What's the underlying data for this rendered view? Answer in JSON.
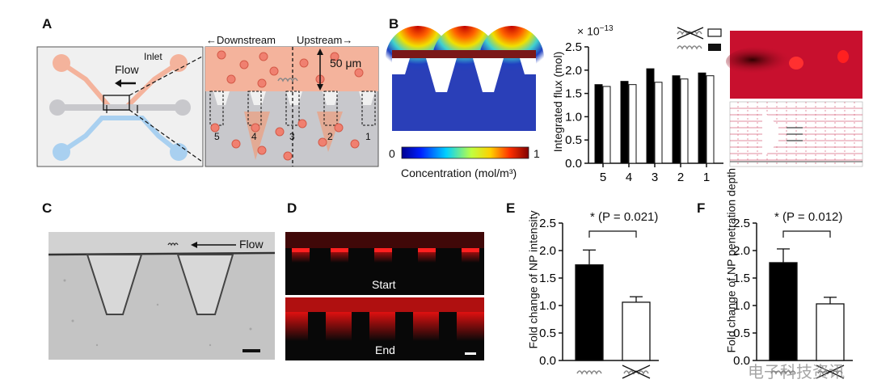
{
  "panels": {
    "a": "A",
    "b": "B",
    "c": "C",
    "d": "D",
    "e": "E",
    "f": "F"
  },
  "panel_a": {
    "inlet": "Inlet",
    "flow": "Flow",
    "downstream": "←Downstream",
    "upstream": "Upstream→",
    "scale": "50 μm",
    "boxes": [
      "5",
      "4",
      "3",
      "2",
      "1"
    ]
  },
  "panel_b": {
    "colorbar_min": "0",
    "colorbar_max": "1",
    "colorbar_label": "Concentration (mol/m³)",
    "exponent": "× 10",
    "exponent_power": "−13"
  },
  "panel_c": {
    "flow": "Flow"
  },
  "panel_d": {
    "start": "Start",
    "end": "End"
  },
  "panel_e": {
    "annotation_star": "*",
    "annotation_text": "(P = 0.021)"
  },
  "panel_f": {
    "annotation_star": "*",
    "annotation_text": "(P = 0.012)"
  },
  "watermark": "电子科技资讯",
  "colors": {
    "black_bar": "#000000",
    "white_bar": "#ffffff",
    "pink": "#f4b39c",
    "gray": "#c8c8cc",
    "red_field": "#c8102e"
  },
  "chart_data": [
    {
      "type": "bar",
      "title": "",
      "xlabel": "",
      "ylabel": "Integrated flux (mol)",
      "ylim": [
        0,
        2.5
      ],
      "yticks": [
        "0.0",
        "0.5",
        "1.0",
        "1.5",
        "2.0",
        "2.5"
      ],
      "categories": [
        "5",
        "4",
        "3",
        "2",
        "1"
      ],
      "series": [
        {
          "name": "with herringbone",
          "color": "#000000",
          "values": [
            1.69,
            1.76,
            2.03,
            1.88,
            1.94
          ]
        },
        {
          "name": "without herringbone",
          "color": "#ffffff",
          "values": [
            1.65,
            1.69,
            1.74,
            1.81,
            1.88
          ]
        }
      ]
    },
    {
      "type": "bar",
      "title": "",
      "ylabel": "Fold change of NP intensity",
      "ylim": [
        0,
        2.5
      ],
      "yticks": [
        "0.0",
        "0.5",
        "1.0",
        "1.5",
        "2.0",
        "2.5"
      ],
      "categories": [
        "with herringbone",
        "without herringbone"
      ],
      "values": [
        1.74,
        1.06
      ],
      "errors": [
        0.27,
        0.1
      ],
      "colors": [
        "#000000",
        "#ffffff"
      ]
    },
    {
      "type": "bar",
      "title": "",
      "ylabel": "Fold change of NP penetration depth",
      "ylim": [
        0,
        2.5
      ],
      "yticks": [
        "0.0",
        "0.5",
        "1.0",
        "1.5",
        "2.0",
        "2.5"
      ],
      "categories": [
        "with herringbone",
        "without herringbone"
      ],
      "values": [
        1.78,
        1.03
      ],
      "errors": [
        0.25,
        0.12
      ],
      "colors": [
        "#000000",
        "#ffffff"
      ]
    }
  ]
}
